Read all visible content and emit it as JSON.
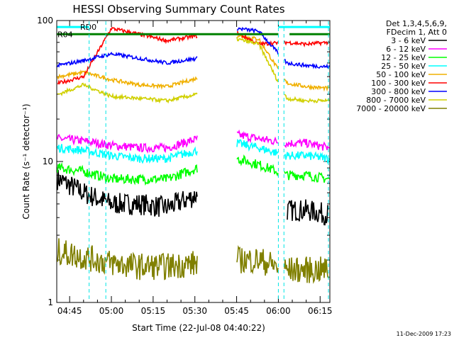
{
  "chart_data": {
    "type": "line",
    "title": "HESSI Observing Summary Count Rates",
    "xlabel": "Start Time (22-Jul-08 04:40:22)",
    "ylabel": "Count Rate (s⁻¹ detector⁻¹)",
    "yscale": "log",
    "ylim": [
      1,
      100
    ],
    "y_ticks": [
      {
        "v": 1,
        "label": "1"
      },
      {
        "v": 10,
        "label": "10"
      },
      {
        "v": 100,
        "label": "100"
      }
    ],
    "xlim": [
      "04:40:22",
      "06:18:30"
    ],
    "x_ticks": [
      "04:45",
      "05:00",
      "05:15",
      "05:30",
      "05:45",
      "06:00",
      "06:15"
    ],
    "legend": {
      "position": "right",
      "header": [
        "Det 1,3,4,5,6,9,",
        "FDecim 1, Att 0"
      ]
    },
    "series": [
      {
        "name": "3 - 6 keV",
        "color": "#000000",
        "base": [
          7.5,
          6.0,
          5.0,
          5.0,
          4.7,
          5.8,
          0,
          0,
          0,
          4.5,
          4.5,
          4.2
        ],
        "noise": 0.18
      },
      {
        "name": "6 - 12 keV",
        "color": "#ff00ff",
        "base": [
          14.5,
          14.0,
          13.0,
          12.5,
          12.5,
          14.5,
          0,
          15.5,
          14.5,
          13.5,
          13.5,
          12.5
        ],
        "noise": 0.07
      },
      {
        "name": "12 - 25 keV",
        "color": "#00ff00",
        "base": [
          9.0,
          8.5,
          7.5,
          7.5,
          7.5,
          9.0,
          0,
          10.5,
          9.5,
          8.0,
          8.0,
          7.5
        ],
        "noise": 0.08
      },
      {
        "name": "25 - 50 keV",
        "color": "#00ffff",
        "base": [
          12.5,
          12.0,
          11.0,
          10.5,
          10.5,
          12.0,
          0,
          13.5,
          12.5,
          11.0,
          11.0,
          10.5
        ],
        "noise": 0.07
      },
      {
        "name": "50 - 100 keV",
        "color": "#f0b000",
        "base": [
          40,
          43,
          38,
          35,
          34,
          39,
          0,
          78,
          74,
          36,
          34,
          33
        ],
        "noise": 0.03
      },
      {
        "name": "100 - 300 keV",
        "color": "#ff0000",
        "base": [
          36,
          40,
          88,
          80,
          72,
          78,
          0,
          82,
          68,
          70,
          68,
          70
        ],
        "noise": 0.03
      },
      {
        "name": "300 - 800 keV",
        "color": "#0000ff",
        "base": [
          48,
          52,
          58,
          54,
          50,
          54,
          0,
          88,
          84,
          50,
          48,
          47
        ],
        "noise": 0.03
      },
      {
        "name": "800 - 7000 keV",
        "color": "#d0d000",
        "base": [
          30,
          35,
          29,
          28,
          27,
          30,
          0,
          74,
          68,
          28,
          27,
          27
        ],
        "noise": 0.03
      },
      {
        "name": "7000 - 20000 keV",
        "color": "#808000",
        "base": [
          2.3,
          2.1,
          1.9,
          1.8,
          1.8,
          1.9,
          0,
          2.0,
          2.0,
          1.7,
          1.7,
          1.7
        ],
        "noise": 0.22
      }
    ],
    "segment_times": [
      "04:41",
      "04:50",
      "05:00",
      "05:10",
      "05:20",
      "05:31",
      "05:38",
      "05:45",
      "05:53",
      "06:03",
      "06:10",
      "06:18"
    ],
    "data_gaps": [
      [
        "05:33",
        "05:38"
      ],
      [
        "06:00",
        "06:02"
      ]
    ],
    "state_bars": [
      {
        "label": "RD0",
        "color": "#00ffff",
        "y": 90,
        "spans": [
          [
            "04:40:30",
            "04:52"
          ],
          [
            "06:00",
            "06:18:30"
          ]
        ]
      },
      {
        "label": "R04",
        "color": "#008000",
        "y": 80,
        "spans": [
          [
            "04:40:30",
            "06:00"
          ],
          [
            "06:04",
            "06:18:30"
          ]
        ]
      }
    ],
    "vlines": [
      "04:52",
      "04:58",
      "06:00",
      "06:02",
      "06:18"
    ],
    "grid": false,
    "footer": "11-Dec-2009 17:23"
  }
}
